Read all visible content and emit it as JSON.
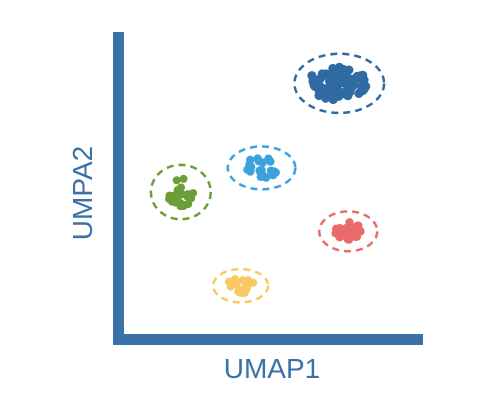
{
  "chart_data": {
    "type": "scatter",
    "title": "",
    "xlabel": "UMAP1",
    "ylabel": "UMPA2",
    "xlim": [
      0,
      10
    ],
    "ylim": [
      0,
      10
    ],
    "axis_color": "#3a72a8",
    "grid": false,
    "ticks": false,
    "legend": "none",
    "clusters": [
      {
        "color": "#2f6aa2",
        "center": [
          7.2,
          8.3
        ],
        "spread": [
          1.15,
          0.58
        ],
        "boundary_radius": [
          1.5,
          0.98
        ],
        "n_points": 72,
        "point_radius": 4.5,
        "seed": 11
      },
      {
        "color": "#3ea1de",
        "center": [
          4.6,
          5.5
        ],
        "spread": [
          0.65,
          0.37
        ],
        "boundary_radius": [
          1.13,
          0.71
        ],
        "n_points": 22,
        "point_radius": 4.2,
        "seed": 23
      },
      {
        "color": "#6b9e36",
        "center": [
          1.9,
          4.7
        ],
        "spread": [
          0.48,
          0.5
        ],
        "boundary_radius": [
          1.0,
          0.9
        ],
        "n_points": 26,
        "point_radius": 4.0,
        "seed": 37
      },
      {
        "color": "#e96b6b",
        "center": [
          7.5,
          3.4
        ],
        "spread": [
          0.5,
          0.33
        ],
        "boundary_radius": [
          0.97,
          0.66
        ],
        "n_points": 32,
        "point_radius": 4.2,
        "seed": 49
      },
      {
        "color": "#f9c863",
        "center": [
          3.9,
          1.6
        ],
        "spread": [
          0.5,
          0.27
        ],
        "boundary_radius": [
          0.92,
          0.55
        ],
        "n_points": 20,
        "point_radius": 4.0,
        "seed": 61
      }
    ]
  }
}
